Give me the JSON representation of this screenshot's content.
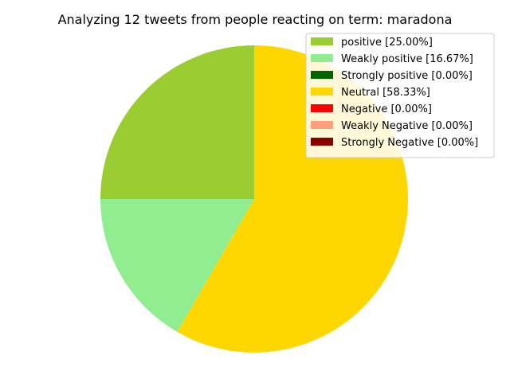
{
  "chart_data": {
    "type": "pie",
    "title": "Analyzing 12 tweets from people reacting on term: maradona",
    "start_angle_deg": 90,
    "direction": "counterclockwise",
    "legend_position": "top-right",
    "slices": [
      {
        "label": "positive [25.00%]",
        "value": 25.0,
        "color": "#9acd32"
      },
      {
        "label": "Weakly positive [16.67%]",
        "value": 16.67,
        "color": "#90ee90"
      },
      {
        "label": "Strongly positive [0.00%]",
        "value": 0.0,
        "color": "#006400"
      },
      {
        "label": "Neutral [58.33%]",
        "value": 58.33,
        "color": "#ffd700"
      },
      {
        "label": "Negative [0.00%]",
        "value": 0.0,
        "color": "#ff0000"
      },
      {
        "label": "Weakly Negative [0.00%]",
        "value": 0.0,
        "color": "#ffa07a"
      },
      {
        "label": "Strongly Negative [0.00%]",
        "value": 0.0,
        "color": "#8b0000"
      }
    ]
  }
}
